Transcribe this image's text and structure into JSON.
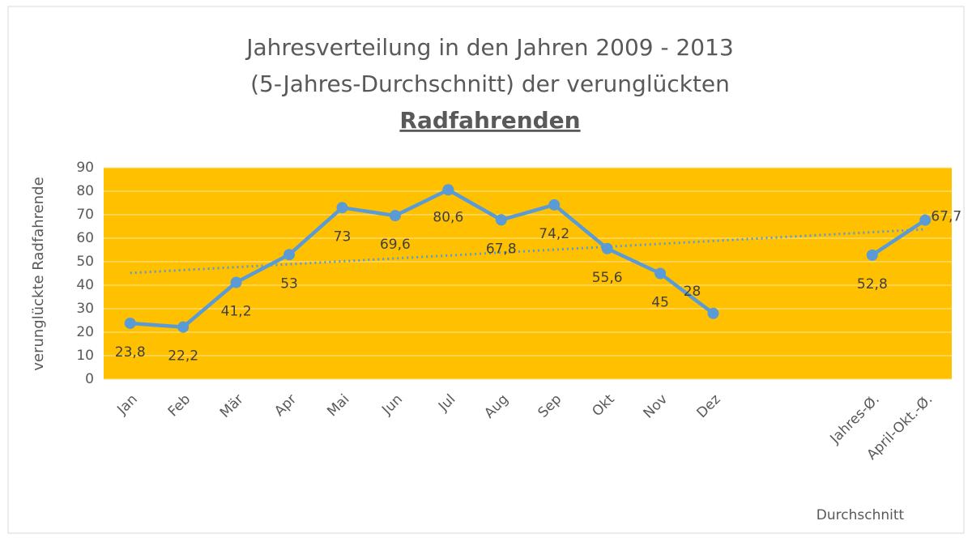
{
  "chart_data": {
    "type": "line",
    "title": [
      "Jahresverteilung in den Jahren 2009 - 2013",
      "(5-Jahres-Durchschnitt) der verunglückten",
      "Radfahrenden"
    ],
    "y_label": "verunglückte Radfahrende",
    "x_label": "Durchschnitt",
    "categories": [
      "Jan",
      "Feb",
      "Mär",
      "Apr",
      "Mai",
      "Jun",
      "Jul",
      "Aug",
      "Sep",
      "Okt",
      "Nov",
      "Dez",
      null,
      null,
      "Jahres-Ø.",
      "April-Okt.-Ø."
    ],
    "series": [
      {
        "name": "verunglückte Radfahrende",
        "color": "#5b9bd5",
        "values": [
          23.8,
          22.2,
          41.2,
          53,
          73,
          69.6,
          80.6,
          67.8,
          74.2,
          55.6,
          45,
          28,
          null,
          null,
          52.8,
          67.7
        ],
        "value_labels": [
          "23,8",
          "22,2",
          "41,2",
          "53",
          "73",
          "69,6",
          "80,6",
          "67,8",
          "74,2",
          "55,6",
          "45",
          "28",
          null,
          null,
          "52,8",
          "67,7"
        ]
      }
    ],
    "trendline": {
      "start": 45.2,
      "end": 63.8
    },
    "ylim": [
      0,
      90
    ],
    "yticks": [
      0,
      10,
      20,
      30,
      40,
      50,
      60,
      70,
      80,
      90
    ],
    "grid": true,
    "plot_color": "#ffc000"
  }
}
